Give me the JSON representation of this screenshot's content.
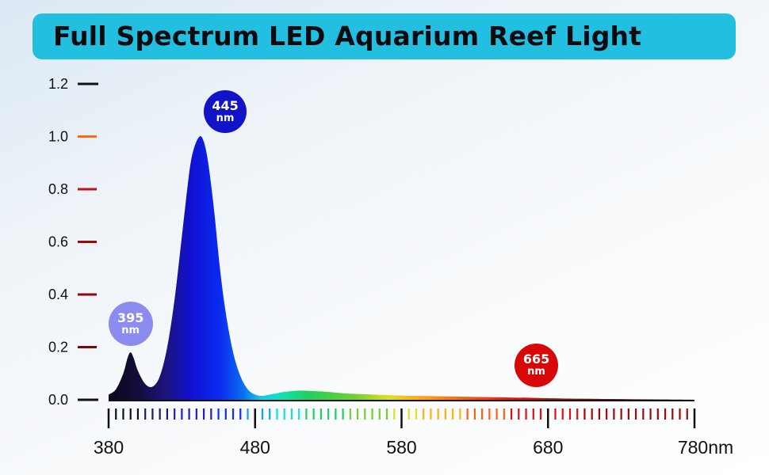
{
  "title": "Full Spectrum LED Aquarium Reef Light",
  "chart_data": {
    "type": "area",
    "title": "Full Spectrum LED Aquarium Reef Light",
    "xlabel": "",
    "ylabel": "",
    "xlim": [
      380,
      780
    ],
    "ylim": [
      0,
      1.2
    ],
    "x_ticks": [
      380,
      480,
      580,
      680,
      780
    ],
    "x_tick_labels": [
      "380",
      "480",
      "580",
      "680",
      "780nm"
    ],
    "y_ticks": [
      0.0,
      0.2,
      0.4,
      0.6,
      0.8,
      1.0,
      1.2
    ],
    "y_tick_labels": [
      "0.0",
      "0.2",
      "0.4",
      "0.6",
      "0.8",
      "1.0",
      "1.2"
    ],
    "grid": false,
    "series": [
      {
        "x": [
          380,
          385,
          390,
          393,
          395,
          397,
          400,
          405,
          410,
          415,
          420,
          425,
          430,
          435,
          438,
          442,
          445,
          448,
          452,
          456,
          460,
          465,
          470,
          475,
          480,
          485,
          490,
          495,
          500,
          510,
          520,
          530,
          540,
          550,
          560,
          570,
          580,
          600,
          620,
          640,
          660,
          665,
          680,
          700,
          720,
          740,
          760,
          780
        ],
        "y": [
          0.02,
          0.04,
          0.1,
          0.16,
          0.18,
          0.16,
          0.11,
          0.06,
          0.05,
          0.09,
          0.2,
          0.38,
          0.62,
          0.86,
          0.95,
          1.0,
          0.98,
          0.9,
          0.72,
          0.5,
          0.33,
          0.18,
          0.09,
          0.04,
          0.02,
          0.015,
          0.02,
          0.025,
          0.03,
          0.035,
          0.033,
          0.03,
          0.025,
          0.022,
          0.02,
          0.018,
          0.016,
          0.014,
          0.012,
          0.01,
          0.008,
          0.008,
          0.006,
          0.004,
          0.003,
          0.002,
          0.001,
          0.0
        ]
      }
    ],
    "peak_labels": [
      {
        "value": "395",
        "unit": "nm",
        "wavelength": 395,
        "color": "#8c8cf0"
      },
      {
        "value": "445",
        "unit": "nm",
        "wavelength": 445,
        "color": "#1212c8"
      },
      {
        "value": "665",
        "unit": "nm",
        "wavelength": 665,
        "color": "#d80808"
      }
    ]
  }
}
